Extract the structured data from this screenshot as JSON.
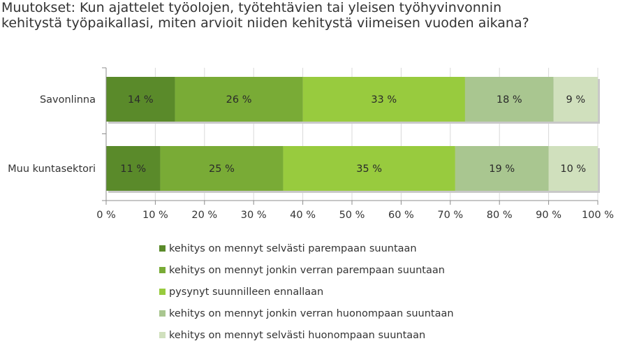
{
  "chart_data": {
    "type": "bar",
    "orientation": "horizontal",
    "stacked": true,
    "title": "Muutokset: Kun ajattelet työolojen, työtehtävien tai yleisen työhyvinvonnin kehitystä työpaikallasi, miten arvioit niiden kehitystä viimeisen vuoden aikana?",
    "categories": [
      "Savonlinna",
      "Muu kuntasektori"
    ],
    "series": [
      {
        "name": "kehitys on mennyt selvästi parempaan suuntaan",
        "values": [
          14,
          11
        ],
        "labels": [
          "14 %",
          "11 %"
        ],
        "color": "#5a8a2a"
      },
      {
        "name": "kehitys on mennyt jonkin verran parempaan suuntaan",
        "values": [
          26,
          25
        ],
        "labels": [
          "26 %",
          "25 %"
        ],
        "color": "#79ab36"
      },
      {
        "name": "pysynyt suunnilleen ennallaan",
        "values": [
          33,
          35
        ],
        "labels": [
          "33 %",
          "35 %"
        ],
        "color": "#98cb3e"
      },
      {
        "name": "kehitys on mennyt jonkin verran huonompaan suuntaan",
        "values": [
          18,
          19
        ],
        "labels": [
          "18 %",
          "19 %"
        ],
        "color": "#a9c690"
      },
      {
        "name": "kehitys on mennyt selvästi huonompaan suuntaan",
        "values": [
          9,
          10
        ],
        "labels": [
          "9 %",
          "10 %"
        ],
        "color": "#d0e0bd"
      }
    ],
    "xlim": [
      0,
      100
    ],
    "xticks": [
      "0 %",
      "10 %",
      "20 %",
      "30 %",
      "40 %",
      "50 %",
      "60 %",
      "70 %",
      "80 %",
      "90 %",
      "100 %"
    ],
    "grid": true,
    "legend_position": "bottom"
  }
}
